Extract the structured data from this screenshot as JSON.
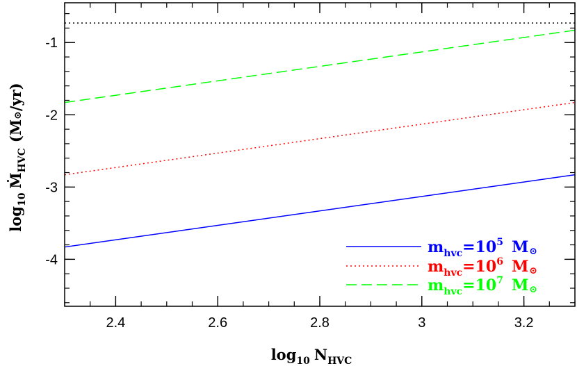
{
  "chart_data": {
    "type": "line",
    "xlabel": {
      "prefix": "log",
      "prefix_sub": "10",
      "main": "N",
      "main_sub": "HVC"
    },
    "ylabel": {
      "prefix": "log",
      "prefix_sub": "10",
      "main": "Ṁ",
      "main_sub": "HVC",
      "unit": "(M",
      "unit_sym": "⊙",
      "unit_end": "/yr)"
    },
    "xlim": [
      2.3,
      3.3
    ],
    "ylim": [
      -4.65,
      -0.45
    ],
    "x_ticks": [
      {
        "value": 2.4,
        "label": "2.4"
      },
      {
        "value": 2.6,
        "label": "2.6"
      },
      {
        "value": 2.8,
        "label": "2.8"
      },
      {
        "value": 3.0,
        "label": "3"
      },
      {
        "value": 3.2,
        "label": "3.2"
      }
    ],
    "y_ticks": [
      {
        "value": -1,
        "label": "-1"
      },
      {
        "value": -2,
        "label": "-2"
      },
      {
        "value": -3,
        "label": "-3"
      },
      {
        "value": -4,
        "label": "-4"
      }
    ],
    "x_minor_step": 0.05,
    "y_minor_step": 0.2,
    "grid": false,
    "legend_position": "bottom-right",
    "series": [
      {
        "name": "m_hvc=10^5 M_sun",
        "mass_exp": "5",
        "color": "#0000ff",
        "dash": "solid",
        "x": [
          2.3,
          3.3
        ],
        "y": [
          -3.83,
          -2.83
        ]
      },
      {
        "name": "m_hvc=10^6 M_sun",
        "mass_exp": "6",
        "color": "#ff0000",
        "dash": "dotted",
        "x": [
          2.3,
          3.3
        ],
        "y": [
          -2.83,
          -1.83
        ]
      },
      {
        "name": "m_hvc=10^7 M_sun",
        "mass_exp": "7",
        "color": "#00ff00",
        "dash": "dashed",
        "x": [
          2.3,
          3.3
        ],
        "y": [
          -1.83,
          -0.83
        ]
      }
    ],
    "reference_line": {
      "y": -0.73,
      "color": "#000000",
      "dash": "dotted"
    },
    "legend_text": {
      "m": "m",
      "sub": "hvc",
      "eq": "=10",
      "unit": "M",
      "sym": "⊙"
    }
  }
}
